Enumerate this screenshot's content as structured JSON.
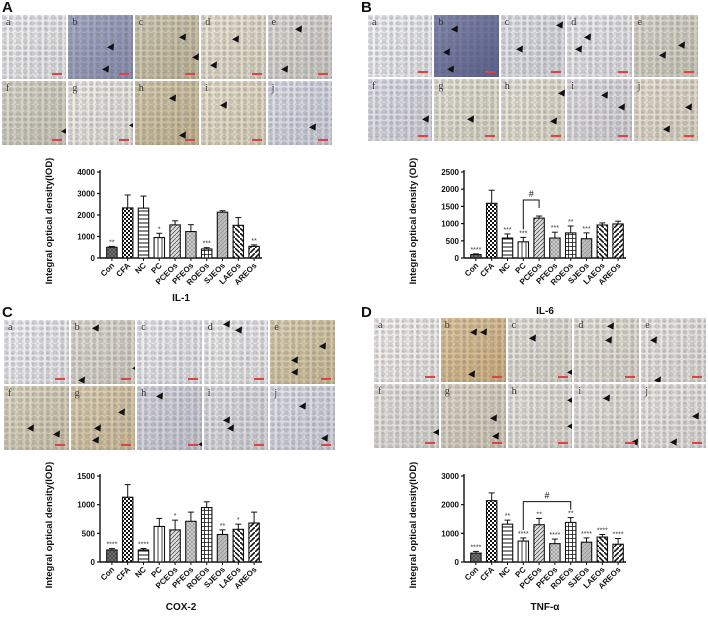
{
  "panels": [
    {
      "letter": "A",
      "micro_labels": [
        "a",
        "b",
        "c",
        "d",
        "e",
        "f",
        "g",
        "h",
        "i",
        "j"
      ]
    },
    {
      "letter": "B",
      "micro_labels": [
        "a",
        "b",
        "c",
        "d",
        "e",
        "f",
        "g",
        "h",
        "i",
        "j"
      ]
    },
    {
      "letter": "C",
      "micro_labels": [
        "a",
        "b",
        "c",
        "d",
        "e",
        "f",
        "g",
        "h",
        "i",
        "j"
      ]
    },
    {
      "letter": "D",
      "micro_labels": [
        "a",
        "b",
        "c",
        "d",
        "e",
        "f",
        "g",
        "h",
        "i",
        "j"
      ]
    }
  ],
  "chart_data": [
    {
      "type": "bar",
      "title": "IL-1",
      "xlabel": "",
      "ylabel": "Integral optical density(IOD)",
      "categories": [
        "Con",
        "CFA",
        "NC",
        "PC",
        "PCEOs",
        "PFEOs",
        "ROEOs",
        "SJEOs",
        "LAEOs",
        "AREOs"
      ],
      "values": [
        500,
        2330,
        2320,
        950,
        1540,
        1230,
        420,
        2130,
        1520,
        540
      ],
      "errors": [
        40,
        600,
        560,
        200,
        190,
        320,
        60,
        70,
        360,
        70
      ],
      "significance": [
        "**",
        "",
        "",
        "*",
        "",
        "",
        "***",
        "",
        "",
        "**"
      ],
      "yticks": [
        0,
        1000,
        2000,
        3000,
        4000
      ],
      "ylim": [
        0,
        4000
      ],
      "grid": false
    },
    {
      "type": "bar",
      "title": "IL-6",
      "xlabel": "",
      "ylabel": "Integral optical density (OD)",
      "categories": [
        "Con",
        "CFA",
        "NC",
        "PC",
        "PCEOs",
        "PFEOs",
        "ROEOs",
        "SJEOs",
        "LAEOs",
        "AREOs"
      ],
      "values": [
        100,
        1590,
        580,
        470,
        1160,
        580,
        730,
        560,
        960,
        990
      ],
      "errors": [
        20,
        380,
        120,
        130,
        60,
        170,
        200,
        170,
        60,
        80
      ],
      "significance": [
        "****",
        "",
        "***",
        "***",
        "",
        "***",
        "**",
        "***",
        "",
        ""
      ],
      "bracket": {
        "from": "PC",
        "to": "PCEOs",
        "label": "#"
      },
      "yticks": [
        0,
        500,
        1000,
        1500,
        2000,
        2500
      ],
      "ylim": [
        0,
        2500
      ],
      "grid": false
    },
    {
      "type": "bar",
      "title": "COX-2",
      "xlabel": "",
      "ylabel": "Integral optical density(IOD)",
      "categories": [
        "Con",
        "CFA",
        "NC",
        "PC",
        "PCEOs",
        "PFEOs",
        "ROEOs",
        "SJEOs",
        "LAEOs",
        "AREOs"
      ],
      "values": [
        210,
        1130,
        210,
        620,
        560,
        710,
        950,
        480,
        570,
        680
      ],
      "errors": [
        25,
        220,
        25,
        140,
        170,
        160,
        100,
        80,
        90,
        190
      ],
      "significance": [
        "****",
        "",
        "****",
        "",
        "*",
        "",
        "",
        "**",
        "*",
        ""
      ],
      "yticks": [
        0,
        500,
        1000,
        1500
      ],
      "ylim": [
        0,
        1500
      ],
      "grid": false
    },
    {
      "type": "bar",
      "title": "TNF-α",
      "xlabel": "",
      "ylabel": "Integral optical density(IOD)",
      "categories": [
        "Con",
        "CFA",
        "NC",
        "PC",
        "PCEOs",
        "PFEOs",
        "ROEOs",
        "SJEOs",
        "LAEOs",
        "AREOs"
      ],
      "values": [
        310,
        2140,
        1320,
        730,
        1300,
        640,
        1380,
        690,
        870,
        620
      ],
      "errors": [
        60,
        270,
        140,
        110,
        220,
        160,
        170,
        150,
        90,
        200
      ],
      "significance": [
        "****",
        "",
        "**",
        "****",
        "**",
        "****",
        "**",
        "****",
        "****",
        "****"
      ],
      "bracket": {
        "from": "PC",
        "to": "ROEOs",
        "label": "#"
      },
      "yticks": [
        0,
        1000,
        2000,
        3000
      ],
      "ylim": [
        0,
        3000
      ],
      "grid": false
    }
  ]
}
